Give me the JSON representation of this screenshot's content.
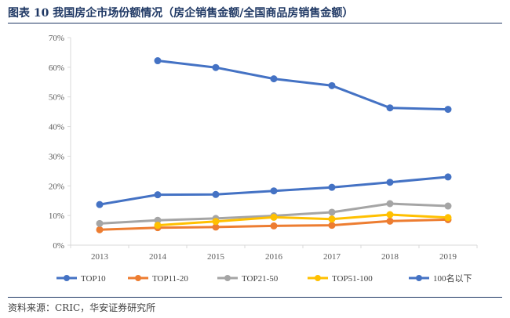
{
  "header": {
    "title": "图表 10  我国房企市场份额情况（房企销售金额/全国商品房销售金额）"
  },
  "footer": {
    "source": "资料来源：CRIC，华安证券研究所"
  },
  "chart_data": {
    "type": "line",
    "title": "",
    "xlabel": "",
    "ylabel": "",
    "x": [
      "2013",
      "2014",
      "2015",
      "2016",
      "2017",
      "2018",
      "2019"
    ],
    "ylim": [
      0,
      70
    ],
    "yticks": [
      0,
      10,
      20,
      30,
      40,
      50,
      60,
      70
    ],
    "ytick_labels": [
      "0%",
      "10%",
      "20%",
      "30%",
      "40%",
      "50%",
      "60%",
      "70%"
    ],
    "grid": false,
    "legend_position": "bottom",
    "series": [
      {
        "name": "TOP10",
        "color": "#4472c4",
        "values": [
          13.7,
          17.0,
          17.1,
          18.3,
          19.5,
          21.2,
          23.0
        ]
      },
      {
        "name": "TOP11-20",
        "color": "#ed7d31",
        "values": [
          5.2,
          5.9,
          6.1,
          6.5,
          6.7,
          8.1,
          8.6
        ]
      },
      {
        "name": "TOP21-50",
        "color": "#a5a5a5",
        "values": [
          7.3,
          8.4,
          9.0,
          9.9,
          11.1,
          14.0,
          13.2
        ]
      },
      {
        "name": "TOP51-100",
        "color": "#ffc000",
        "values": [
          null,
          6.7,
          8.0,
          9.4,
          8.8,
          10.3,
          9.3
        ]
      },
      {
        "name": "100名以下",
        "color": "#4472c4",
        "values": [
          null,
          62.2,
          59.9,
          56.1,
          53.8,
          46.3,
          45.8
        ]
      }
    ]
  }
}
